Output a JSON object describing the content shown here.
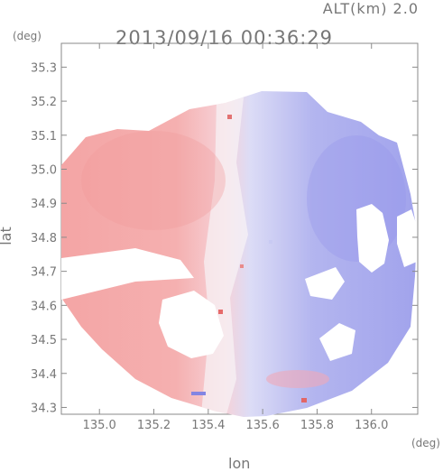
{
  "header": {
    "altitude_label": "ALT(km) 2.0",
    "timestamp": "2013/09/16 00:36:29"
  },
  "chart_data": {
    "type": "heatmap",
    "title": "2013/09/16 00:36:29",
    "subtitle": "ALT(km) 2.0",
    "xlabel": "lon",
    "ylabel": "lat",
    "x_unit": "(deg)",
    "y_unit": "(deg)",
    "xlim": [
      134.86,
      136.17
    ],
    "ylim": [
      34.28,
      35.37
    ],
    "x_ticks": [
      "135.0",
      "135.2",
      "135.4",
      "135.6",
      "135.8",
      "136.0"
    ],
    "y_ticks": [
      "34.3",
      "34.4",
      "34.5",
      "34.6",
      "34.7",
      "34.8",
      "34.9",
      "35.0",
      "35.1",
      "35.2",
      "35.3"
    ],
    "colors": {
      "positive": "#f4a0a0",
      "negative": "#9fa0ee",
      "neutral": "#ffffff"
    },
    "grid": false,
    "legend": "none"
  }
}
